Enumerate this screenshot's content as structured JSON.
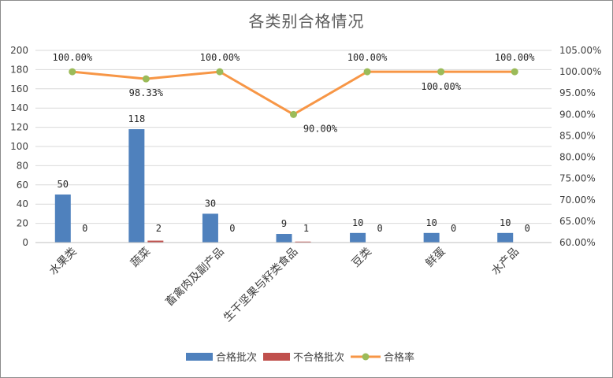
{
  "chart_data": {
    "type": "bar",
    "title": "各类别合格情况",
    "categories": [
      "水果类",
      "蔬菜",
      "畜禽肉及副产品",
      "生干坚果与籽类食品",
      "豆类",
      "鲜蛋",
      "水产品"
    ],
    "series": [
      {
        "name": "合格批次",
        "type": "bar",
        "axis": "left",
        "color": "#4f81bd",
        "values": [
          50,
          118,
          30,
          9,
          10,
          10,
          10
        ],
        "labels": [
          "50",
          "118",
          "30",
          "9",
          "10",
          "10",
          "10"
        ]
      },
      {
        "name": "不合格批次",
        "type": "bar",
        "axis": "left",
        "color": "#c0504d",
        "values": [
          0,
          2,
          0,
          1,
          0,
          0,
          0
        ],
        "labels": [
          "0",
          "2",
          "0",
          "1",
          "0",
          "0",
          "0"
        ]
      },
      {
        "name": "合格率",
        "type": "line",
        "axis": "right",
        "color": "#f79646",
        "marker_color": "#9bbb59",
        "values": [
          100,
          98.33,
          100,
          90,
          100,
          100,
          100
        ],
        "labels": [
          "100.00%",
          "98.33%",
          "100.00%",
          "90.00%",
          "100.00%",
          "100.00%",
          "100.00%"
        ]
      }
    ],
    "ylim": [
      0,
      200
    ],
    "y_ticks": [
      "0",
      "20",
      "40",
      "60",
      "80",
      "100",
      "120",
      "140",
      "160",
      "180",
      "200"
    ],
    "y2lim": [
      60,
      105
    ],
    "y2_ticks": [
      "60.00%",
      "65.00%",
      "70.00%",
      "75.00%",
      "80.00%",
      "85.00%",
      "90.00%",
      "95.00%",
      "100.00%",
      "105.00%"
    ],
    "grid": true,
    "legend": "bottom"
  }
}
